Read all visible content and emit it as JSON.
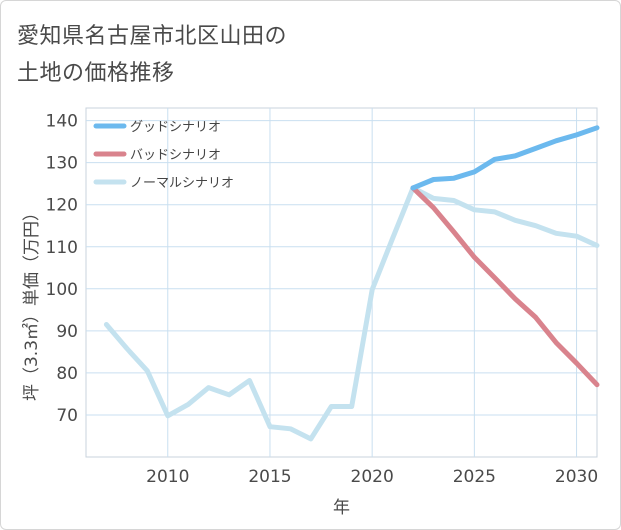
{
  "title_line1": "愛知県名古屋市北区山田の",
  "title_line2": "土地の価格推移",
  "chart_data": {
    "type": "line",
    "xlabel": "年",
    "ylabel": "坪（3.3㎡）単価（万円）",
    "xlim": [
      2006,
      2031
    ],
    "ylim": [
      60,
      143
    ],
    "xticks": [
      2010,
      2015,
      2020,
      2025,
      2030
    ],
    "yticks": [
      70,
      80,
      90,
      100,
      110,
      120,
      130,
      140
    ],
    "grid": true,
    "legend_position": "top-left",
    "series": [
      {
        "name": "ノーマルシナリオ",
        "color": "#c4e2ef",
        "x": [
          2007,
          2008,
          2009,
          2010,
          2011,
          2012,
          2013,
          2014,
          2015,
          2016,
          2017,
          2018,
          2019,
          2020,
          2021,
          2022,
          2023,
          2024,
          2025,
          2026,
          2027,
          2028,
          2029,
          2030,
          2031
        ],
        "y": [
          91.5,
          85.8,
          80.5,
          69.8,
          72.5,
          76.5,
          74.8,
          78.2,
          67.2,
          66.7,
          64.3,
          72,
          72,
          99.8,
          112,
          124,
          121.5,
          121,
          118.8,
          118.3,
          116.3,
          115,
          113.2,
          112.5,
          110.3
        ]
      },
      {
        "name": "バッドシナリオ",
        "color": "#d9838d",
        "x": [
          2022,
          2023,
          2024,
          2025,
          2026,
          2027,
          2028,
          2029,
          2030,
          2031
        ],
        "y": [
          124,
          119.3,
          113.5,
          107.5,
          102.6,
          97.6,
          93.2,
          87.2,
          82.3,
          77.2
        ]
      },
      {
        "name": "グッドシナリオ",
        "color": "#6cb9ee",
        "x": [
          2022,
          2023,
          2024,
          2025,
          2026,
          2027,
          2028,
          2029,
          2030,
          2031
        ],
        "y": [
          124,
          126,
          126.3,
          127.8,
          130.8,
          131.6,
          133.4,
          135.2,
          136.6,
          138.3
        ]
      }
    ],
    "legend": [
      {
        "name": "グッドシナリオ",
        "color": "#6cb9ee"
      },
      {
        "name": "バッドシナリオ",
        "color": "#d9838d"
      },
      {
        "name": "ノーマルシナリオ",
        "color": "#c4e2ef"
      }
    ]
  }
}
